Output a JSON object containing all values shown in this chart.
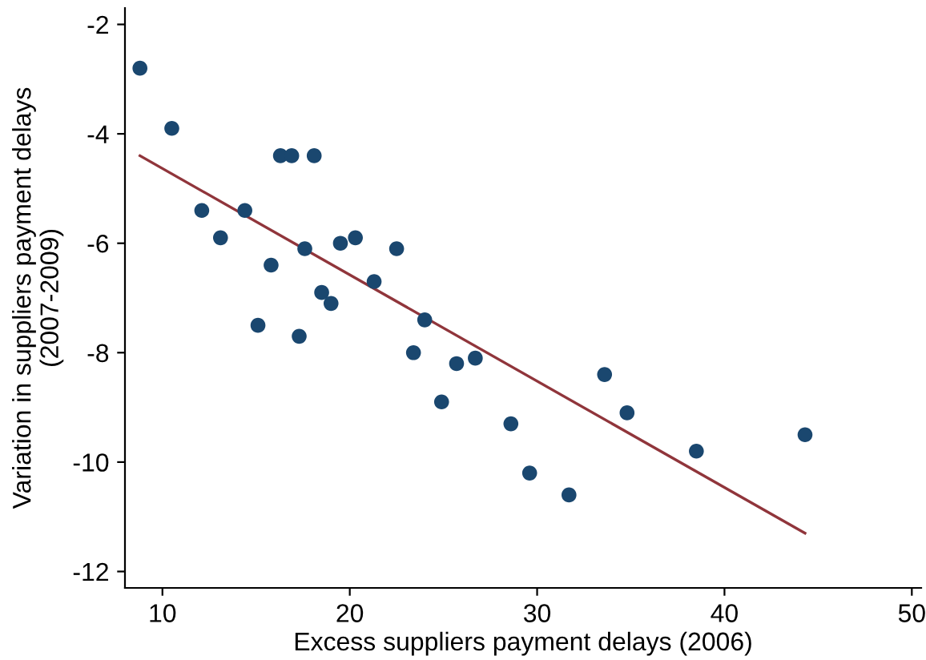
{
  "chart_data": {
    "type": "scatter",
    "xlabel": "Excess suppliers payment delays (2006)",
    "ylabel": "Variation in suppliers payment delays\n(2007-2009)",
    "xlim": [
      8,
      50.5
    ],
    "ylim": [
      -12.3,
      -1.7
    ],
    "xticks": [
      10,
      20,
      30,
      40,
      50
    ],
    "yticks": [
      {
        "value": -2,
        "label": "-2"
      },
      {
        "value": -4,
        "label": "-4"
      },
      {
        "value": -6,
        "label": "-6"
      },
      {
        "value": -8,
        "label": "-8"
      },
      {
        "value": -10,
        "label": "-10"
      },
      {
        "value": -12,
        "label": "-12"
      }
    ],
    "grid": false,
    "legend": false,
    "series": [
      {
        "marker": "circle",
        "color": "#1a476f",
        "x": [
          8.8,
          10.5,
          12.1,
          13.1,
          14.4,
          15.1,
          15.8,
          16.3,
          16.9,
          18.1,
          17.6,
          17.3,
          18.5,
          19.0,
          19.5,
          20.3,
          21.3,
          22.5,
          23.4,
          24.0,
          24.9,
          25.7,
          26.7,
          28.6,
          29.6,
          31.7,
          33.6,
          34.8,
          38.5,
          44.3
        ],
        "values": [
          -2.8,
          -3.9,
          -5.4,
          -5.9,
          -5.4,
          -7.5,
          -6.4,
          -4.4,
          -4.4,
          -4.4,
          -6.1,
          -7.7,
          -6.9,
          -7.1,
          -6.0,
          -5.9,
          -6.7,
          -6.1,
          -8.0,
          -7.4,
          -8.9,
          -8.2,
          -8.1,
          -9.3,
          -10.2,
          -10.6,
          -8.4,
          -9.1,
          -9.8,
          -9.5
        ]
      },
      {
        "type": "line",
        "marker": "none",
        "color": "#90353b",
        "x": [
          8.8,
          44.3
        ],
        "values": [
          -4.4,
          -11.3
        ]
      }
    ]
  }
}
